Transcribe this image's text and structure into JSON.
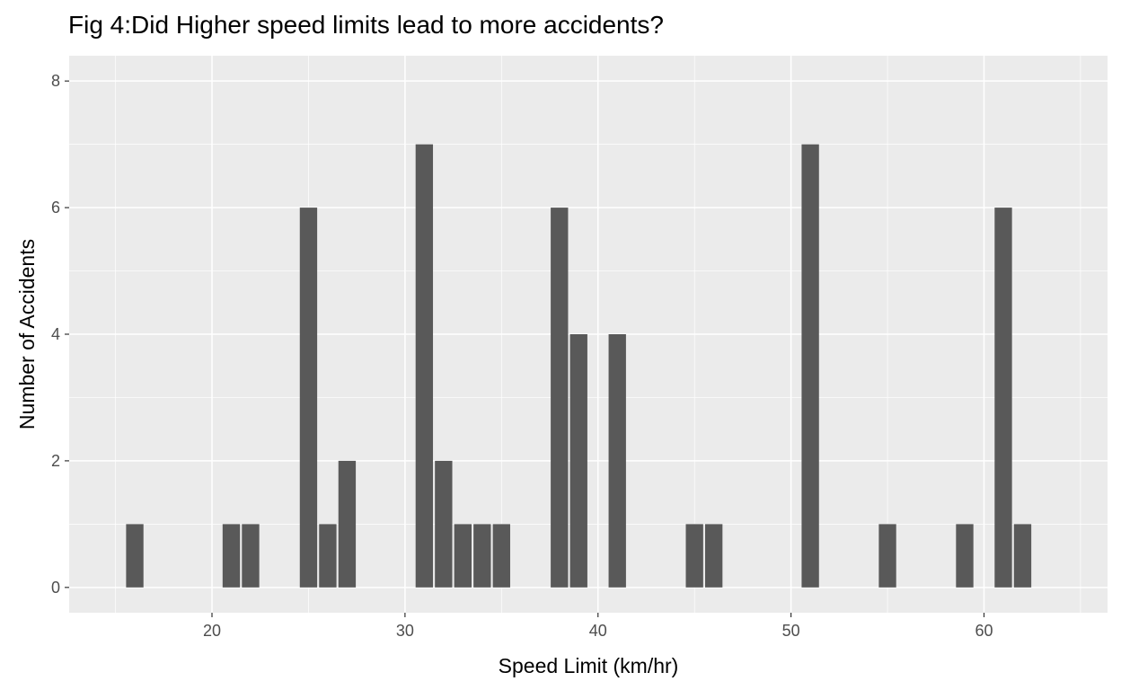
{
  "chart_data": {
    "type": "bar",
    "title": "Fig 4:Did Higher speed limits lead to more accidents?",
    "xlabel": "Speed Limit (km/hr)",
    "ylabel": "Number of Accidents",
    "xlim": [
      12.6,
      66.4
    ],
    "ylim": [
      -0.4,
      8.4
    ],
    "x_ticks": [
      20,
      30,
      40,
      50,
      60
    ],
    "y_ticks": [
      0,
      2,
      4,
      6,
      8
    ],
    "grid": true,
    "legend": "none",
    "bar_color": "#595959",
    "panel_background": "#ebebeb",
    "grid_color": "#ffffff",
    "bars": [
      {
        "x": 16,
        "y": 1
      },
      {
        "x": 21,
        "y": 1
      },
      {
        "x": 22,
        "y": 1
      },
      {
        "x": 25,
        "y": 6
      },
      {
        "x": 26,
        "y": 1
      },
      {
        "x": 27,
        "y": 2
      },
      {
        "x": 31,
        "y": 7
      },
      {
        "x": 32,
        "y": 2
      },
      {
        "x": 33,
        "y": 1
      },
      {
        "x": 34,
        "y": 1
      },
      {
        "x": 35,
        "y": 1
      },
      {
        "x": 38,
        "y": 6
      },
      {
        "x": 39,
        "y": 4
      },
      {
        "x": 41,
        "y": 4
      },
      {
        "x": 45,
        "y": 1
      },
      {
        "x": 46,
        "y": 1
      },
      {
        "x": 51,
        "y": 7
      },
      {
        "x": 55,
        "y": 1
      },
      {
        "x": 59,
        "y": 1
      },
      {
        "x": 61,
        "y": 6
      },
      {
        "x": 62,
        "y": 1
      }
    ]
  }
}
